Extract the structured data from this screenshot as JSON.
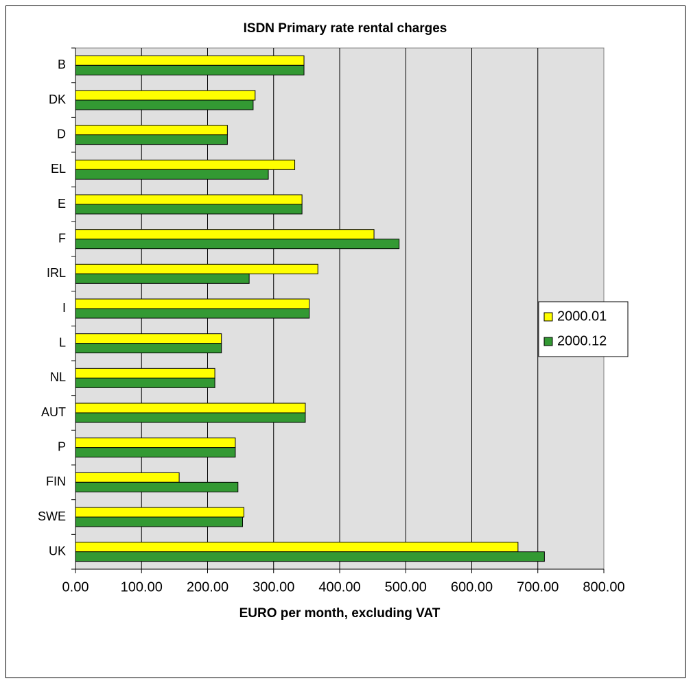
{
  "chart_data": {
    "type": "hbar",
    "title": "ISDN Primary rate rental charges",
    "x_label": "EURO per month, excluding VAT",
    "categories": [
      "B",
      "DK",
      "D",
      "EL",
      "E",
      "F",
      "IRL",
      "I",
      "L",
      "NL",
      "AUT",
      "P",
      "FIN",
      "SWE",
      "UK"
    ],
    "series": [
      {
        "name": "2000.01",
        "color": "#ffff00",
        "values": [
          346,
          272,
          230,
          332,
          343,
          452,
          367,
          354,
          221,
          211,
          348,
          242,
          157,
          255,
          670
        ]
      },
      {
        "name": "2000.12",
        "color": "#339933",
        "values": [
          346,
          269,
          230,
          292,
          343,
          490,
          263,
          354,
          221,
          211,
          348,
          242,
          246,
          253,
          710
        ]
      }
    ],
    "xlim": [
      0,
      800
    ],
    "xticks": [
      {
        "value": 0,
        "label": "0.00"
      },
      {
        "value": 100,
        "label": "100.00"
      },
      {
        "value": 200,
        "label": "200.00"
      },
      {
        "value": 300,
        "label": "300.00"
      },
      {
        "value": 400,
        "label": "400.00"
      },
      {
        "value": 500,
        "label": "500.00"
      },
      {
        "value": 600,
        "label": "600.00"
      },
      {
        "value": 700,
        "label": "700.00"
      },
      {
        "value": 800,
        "label": "800.00"
      }
    ],
    "grid": true,
    "legend": "right"
  }
}
